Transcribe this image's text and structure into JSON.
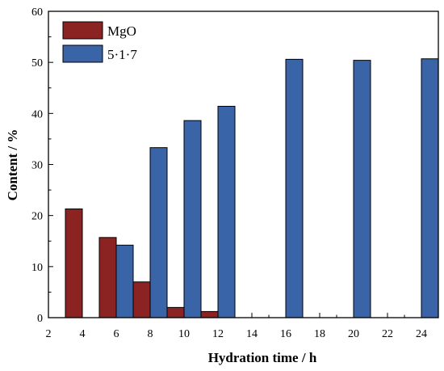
{
  "chart_data": {
    "type": "bar",
    "title": "",
    "xlabel": "Hydration time / h",
    "ylabel": "Content  / %",
    "xlim": [
      2,
      25
    ],
    "ylim": [
      0,
      60
    ],
    "xticks": [
      "2",
      "4",
      "6",
      "8",
      "10",
      "12",
      "14",
      "16",
      "18",
      "20",
      "22",
      "24"
    ],
    "yticks": [
      "0",
      "10",
      "20",
      "30",
      "40",
      "50",
      "60"
    ],
    "legend_position": "top-left",
    "grid": false,
    "series": [
      {
        "name": "MgO",
        "color": "#8b2323",
        "points": [
          {
            "x": 3.5,
            "y": 21.3
          },
          {
            "x": 5.5,
            "y": 15.7
          },
          {
            "x": 7.5,
            "y": 7.0
          },
          {
            "x": 9.5,
            "y": 2.0
          },
          {
            "x": 11.5,
            "y": 1.2
          }
        ]
      },
      {
        "name": "5·1·7",
        "color": "#3a64a8",
        "points": [
          {
            "x": 6.5,
            "y": 14.2
          },
          {
            "x": 8.5,
            "y": 33.3
          },
          {
            "x": 10.5,
            "y": 38.6
          },
          {
            "x": 12.5,
            "y": 41.4
          },
          {
            "x": 16.5,
            "y": 50.6
          },
          {
            "x": 20.5,
            "y": 50.4
          },
          {
            "x": 24.5,
            "y": 50.7
          }
        ]
      }
    ]
  }
}
